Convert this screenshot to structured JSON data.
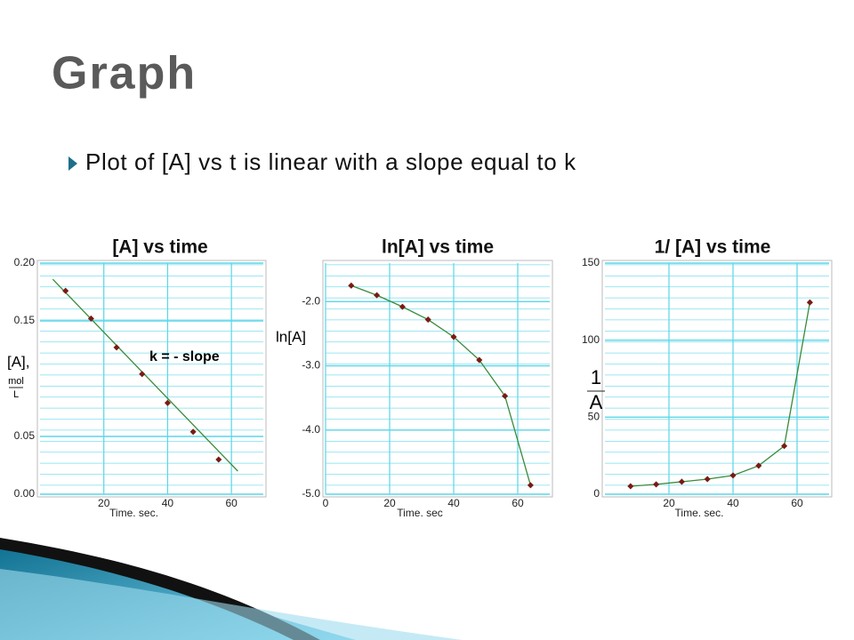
{
  "title": "Graph",
  "bullet": "Plot of [A] vs t is linear with a slope equal to k",
  "chart_data": [
    {
      "type": "line",
      "title": "[A]  vs time",
      "xlabel": "Time. sec.",
      "ylabel": "[A],",
      "ylabel_unit": {
        "num": "mol",
        "den": "L"
      },
      "annotation": "k = - slope",
      "xlim": [
        0,
        70
      ],
      "xticks": [
        20,
        40,
        60
      ],
      "ylim": [
        0,
        0.2
      ],
      "yticks": [
        {
          "value": 0,
          "label": "0.00"
        },
        {
          "value": 0.05,
          "label": "0.05"
        },
        {
          "value": 0.15,
          "label": "0.15"
        },
        {
          "value": 0.2,
          "label": "0.20"
        }
      ],
      "grid": true,
      "series": [
        {
          "color": "#3a8a3a",
          "marker": false,
          "x": [
            4,
            62
          ],
          "values": [
            0.186,
            0.02
          ]
        },
        {
          "color": "#7a1a14",
          "marker": true,
          "line": false,
          "x": [
            8,
            16,
            24,
            32,
            40,
            48,
            56
          ],
          "values": [
            0.176,
            0.152,
            0.127,
            0.104,
            0.079,
            0.054,
            0.03
          ]
        }
      ]
    },
    {
      "type": "line",
      "title": "ln[A] vs time",
      "xlabel": "Time. sec",
      "ylabel": "ln[A]",
      "xlim": [
        0,
        70
      ],
      "xticks": [
        0,
        20,
        40,
        60
      ],
      "ylim": [
        -5,
        -1.4
      ],
      "yticks": [
        {
          "value": -2,
          "label": "-2.0"
        },
        {
          "value": -3,
          "label": "-3.0"
        },
        {
          "value": -4,
          "label": "-4.0"
        },
        {
          "value": -5,
          "label": "-5.0"
        }
      ],
      "grid": true,
      "series": [
        {
          "color": "#3a8a3a",
          "marker_color": "#7a1a14",
          "marker": true,
          "x": [
            8,
            16,
            24,
            32,
            40,
            48,
            56,
            64
          ],
          "values": [
            -1.75,
            -1.9,
            -2.08,
            -2.28,
            -2.55,
            -2.91,
            -3.47,
            -4.86
          ]
        }
      ]
    },
    {
      "type": "line",
      "title": "1/ [A] vs time",
      "xlabel": "Time. sec.",
      "ylabel_unit": {
        "num": "1",
        "den": "A"
      },
      "xlim": [
        0,
        70
      ],
      "xticks": [
        20,
        40,
        60
      ],
      "ylim": [
        0,
        150
      ],
      "yticks": [
        0,
        50,
        100,
        150
      ],
      "grid": true,
      "series": [
        {
          "color": "#3a8a3a",
          "marker_color": "#7a1a14",
          "marker": true,
          "x": [
            8,
            16,
            24,
            32,
            40,
            48,
            56,
            64
          ],
          "values": [
            5.2,
            6.4,
            8.1,
            9.8,
            12.2,
            18.5,
            31.3,
            124.5
          ]
        }
      ]
    }
  ]
}
